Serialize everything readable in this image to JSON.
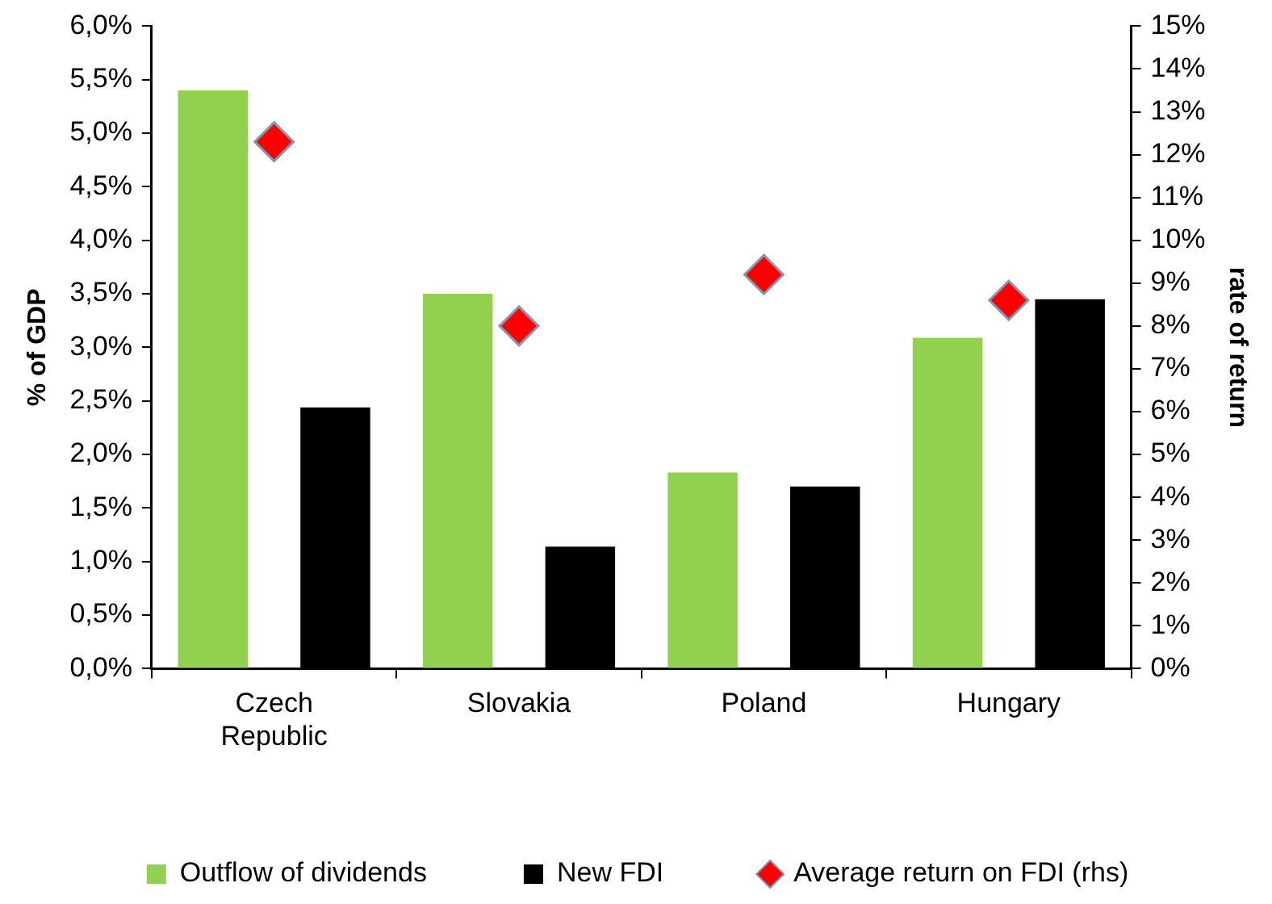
{
  "chart_data": {
    "type": "bar",
    "ylabel": "% of GDP",
    "y2label": "rate of return",
    "categories": [
      "Czech Republic",
      "Slovakia",
      "Poland",
      "Hungary"
    ],
    "series": [
      {
        "name": "Outflow of dividends",
        "color": "#92d050",
        "values": [
          5.4,
          3.5,
          1.83,
          3.09
        ]
      },
      {
        "name": "New FDI",
        "color": "#000000",
        "values": [
          2.44,
          1.14,
          1.7,
          3.45
        ]
      },
      {
        "name": "Average return on FDI (rhs)",
        "type": "scatter",
        "axis": "y2",
        "marker": "diamond",
        "color": "#ff0000",
        "values": [
          12.3,
          8.0,
          9.2,
          8.6
        ]
      }
    ],
    "ylim": [
      0,
      6
    ],
    "yticks": [
      {
        "value": 0,
        "label": "0,0%"
      },
      {
        "value": 0.5,
        "label": "0,5%"
      },
      {
        "value": 1,
        "label": "1,0%"
      },
      {
        "value": 1.5,
        "label": "1,5%"
      },
      {
        "value": 2,
        "label": "2,0%"
      },
      {
        "value": 2.5,
        "label": "2,5%"
      },
      {
        "value": 3,
        "label": "3,0%"
      },
      {
        "value": 3.5,
        "label": "3,5%"
      },
      {
        "value": 4,
        "label": "4,0%"
      },
      {
        "value": 4.5,
        "label": "4,5%"
      },
      {
        "value": 5,
        "label": "5,0%"
      },
      {
        "value": 5.5,
        "label": "5,5%"
      },
      {
        "value": 6,
        "label": "6,0%"
      }
    ],
    "y2lim": [
      0,
      15
    ],
    "y2ticks": [
      {
        "value": 0,
        "label": "0%"
      },
      {
        "value": 1,
        "label": "1%"
      },
      {
        "value": 2,
        "label": "2%"
      },
      {
        "value": 3,
        "label": "3%"
      },
      {
        "value": 4,
        "label": "4%"
      },
      {
        "value": 5,
        "label": "5%"
      },
      {
        "value": 6,
        "label": "6%"
      },
      {
        "value": 7,
        "label": "7%"
      },
      {
        "value": 8,
        "label": "8%"
      },
      {
        "value": 9,
        "label": "9%"
      },
      {
        "value": 10,
        "label": "10%"
      },
      {
        "value": 11,
        "label": "11%"
      },
      {
        "value": 12,
        "label": "12%"
      },
      {
        "value": 13,
        "label": "13%"
      },
      {
        "value": 14,
        "label": "14%"
      },
      {
        "value": 15,
        "label": "15%"
      }
    ],
    "grid": false,
    "legend": "bottom"
  }
}
